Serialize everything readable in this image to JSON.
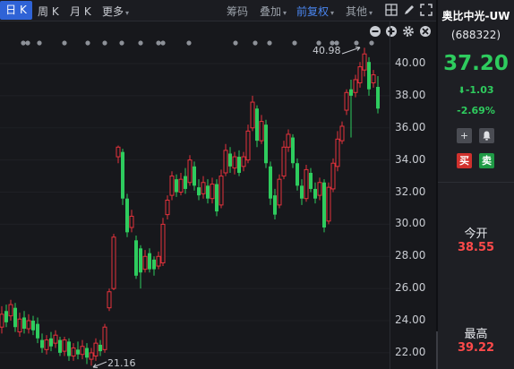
{
  "toolbar": {
    "tabs": [
      "日 K",
      "周 K",
      "月 K",
      "更多"
    ],
    "right": [
      "筹码",
      "叠加",
      "前复权",
      "其他"
    ]
  },
  "axis": {
    "ticks": [
      "40.00",
      "38.00",
      "36.00",
      "34.00",
      "32.00",
      "30.00",
      "28.00",
      "26.00",
      "24.00",
      "22.00"
    ]
  },
  "annotations": {
    "high": "40.98",
    "low": "21.16"
  },
  "stock": {
    "name": "奥比中光-UW",
    "code": "(688322)",
    "price": "37.20",
    "change": "-1.03",
    "change_pct": "-2.69%",
    "buy_label": "买",
    "sell_label": "卖"
  },
  "quote": {
    "open_label": "今开",
    "open_value": "38.55",
    "high_label": "最高",
    "high_value": "39.22"
  },
  "colors": {
    "up": "#e5323b",
    "down": "#2ecc5e",
    "accent": "#2f63d6",
    "bg": "#17181c"
  },
  "icons": [
    "caret-down-icon",
    "grid-icon",
    "pencil-icon",
    "fullscreen-icon",
    "minus-circle-icon",
    "plus-circle-icon",
    "gear-icon",
    "close-circle-icon",
    "plus-icon",
    "bell-icon",
    "arrow-down-icon"
  ]
}
